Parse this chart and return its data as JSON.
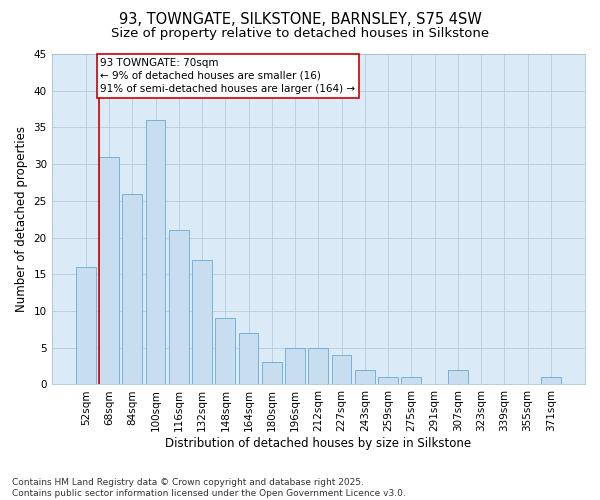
{
  "title_line1": "93, TOWNGATE, SILKSTONE, BARNSLEY, S75 4SW",
  "title_line2": "Size of property relative to detached houses in Silkstone",
  "xlabel": "Distribution of detached houses by size in Silkstone",
  "ylabel": "Number of detached properties",
  "categories": [
    "52sqm",
    "68sqm",
    "84sqm",
    "100sqm",
    "116sqm",
    "132sqm",
    "148sqm",
    "164sqm",
    "180sqm",
    "196sqm",
    "212sqm",
    "227sqm",
    "243sqm",
    "259sqm",
    "275sqm",
    "291sqm",
    "307sqm",
    "323sqm",
    "339sqm",
    "355sqm",
    "371sqm"
  ],
  "values": [
    16,
    31,
    26,
    36,
    21,
    17,
    9,
    7,
    3,
    5,
    5,
    4,
    2,
    1,
    1,
    0,
    2,
    0,
    0,
    0,
    1
  ],
  "bar_color": "#c9ddf0",
  "bar_edge_color": "#6aaad4",
  "grid_color": "#b8ccdf",
  "background_color": "#daeaf6",
  "vline_color": "#cc0000",
  "annotation_text": "93 TOWNGATE: 70sqm\n← 9% of detached houses are smaller (16)\n91% of semi-detached houses are larger (164) →",
  "annotation_box_color": "#ffffff",
  "annotation_box_edge": "#cc0000",
  "ylim": [
    0,
    45
  ],
  "yticks": [
    0,
    5,
    10,
    15,
    20,
    25,
    30,
    35,
    40,
    45
  ],
  "footnote": "Contains HM Land Registry data © Crown copyright and database right 2025.\nContains public sector information licensed under the Open Government Licence v3.0.",
  "title_fontsize": 10.5,
  "subtitle_fontsize": 9.5,
  "axis_label_fontsize": 8.5,
  "tick_fontsize": 7.5,
  "annotation_fontsize": 7.5,
  "footnote_fontsize": 6.5
}
